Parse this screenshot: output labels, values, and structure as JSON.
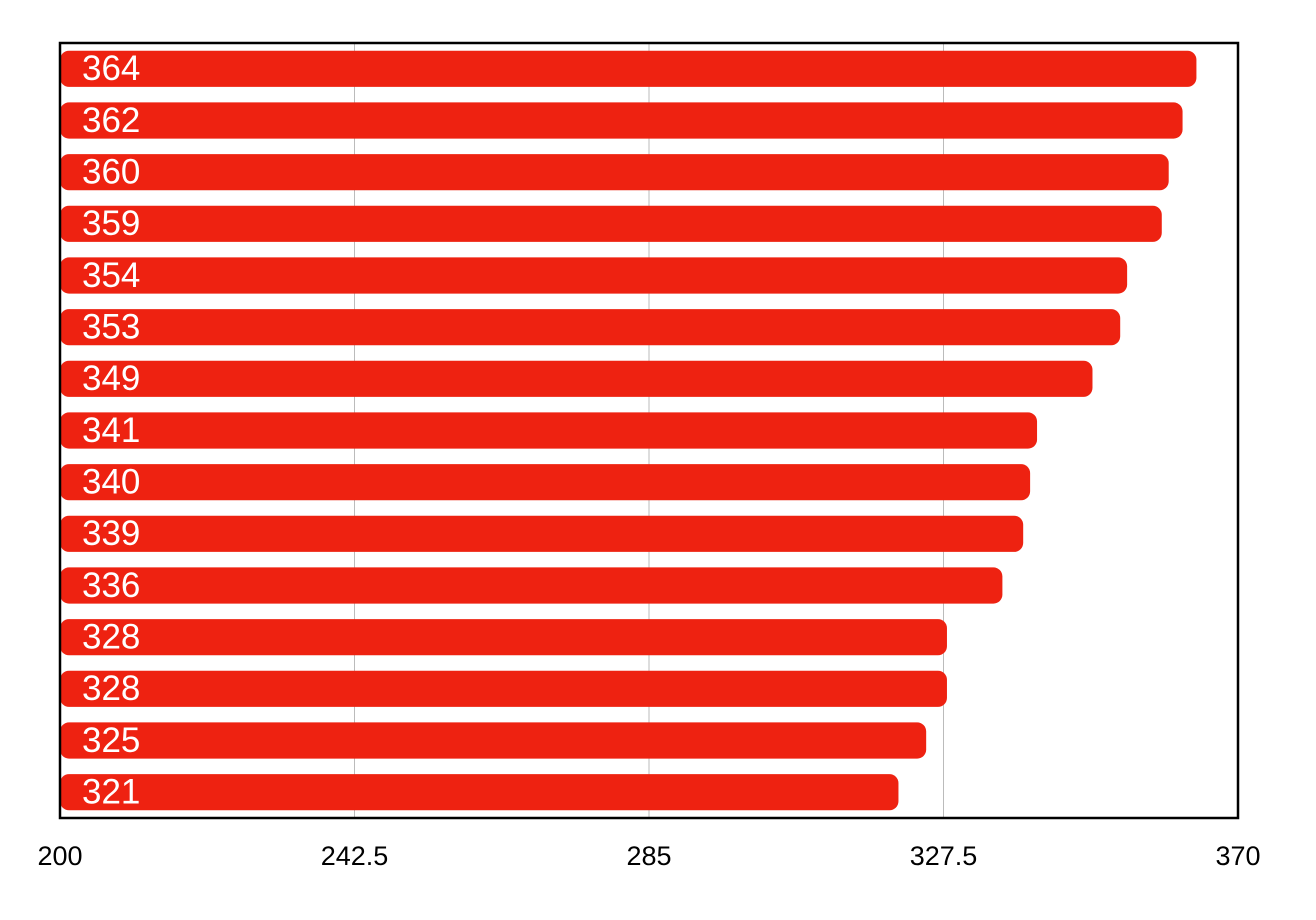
{
  "chart_data": {
    "type": "bar",
    "orientation": "horizontal",
    "values": [
      364,
      362,
      360,
      359,
      354,
      353,
      349,
      341,
      340,
      339,
      336,
      328,
      328,
      325,
      321
    ],
    "color": "#ee2211",
    "xlim": [
      200,
      370
    ],
    "xticks": [
      200,
      242.5,
      285,
      327.5,
      370
    ],
    "grid": true
  }
}
